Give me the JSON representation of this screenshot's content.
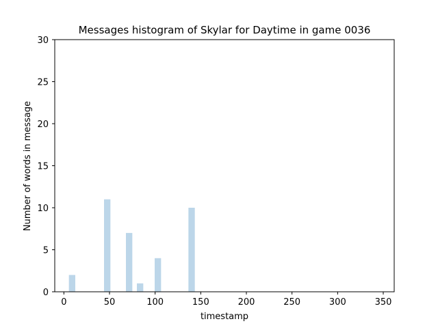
{
  "chart_data": {
    "type": "bar",
    "title": "Messages histogram of Skylar for Daytime in game 0036",
    "xlabel": "timestamp",
    "ylabel": "Number of words in message",
    "xlim": [
      -10,
      362
    ],
    "ylim": [
      0,
      30
    ],
    "xticks": [
      0,
      50,
      100,
      150,
      200,
      250,
      300,
      350
    ],
    "yticks": [
      0,
      5,
      10,
      15,
      20,
      25,
      30
    ],
    "bar_width": 7,
    "bar_color": "#bcd6e9",
    "grid": false,
    "bars": [
      {
        "x": 9,
        "value": 2
      },
      {
        "x": 47.5,
        "value": 11
      },
      {
        "x": 71.5,
        "value": 7
      },
      {
        "x": 83.5,
        "value": 1
      },
      {
        "x": 103,
        "value": 4
      },
      {
        "x": 140,
        "value": 10
      }
    ]
  }
}
